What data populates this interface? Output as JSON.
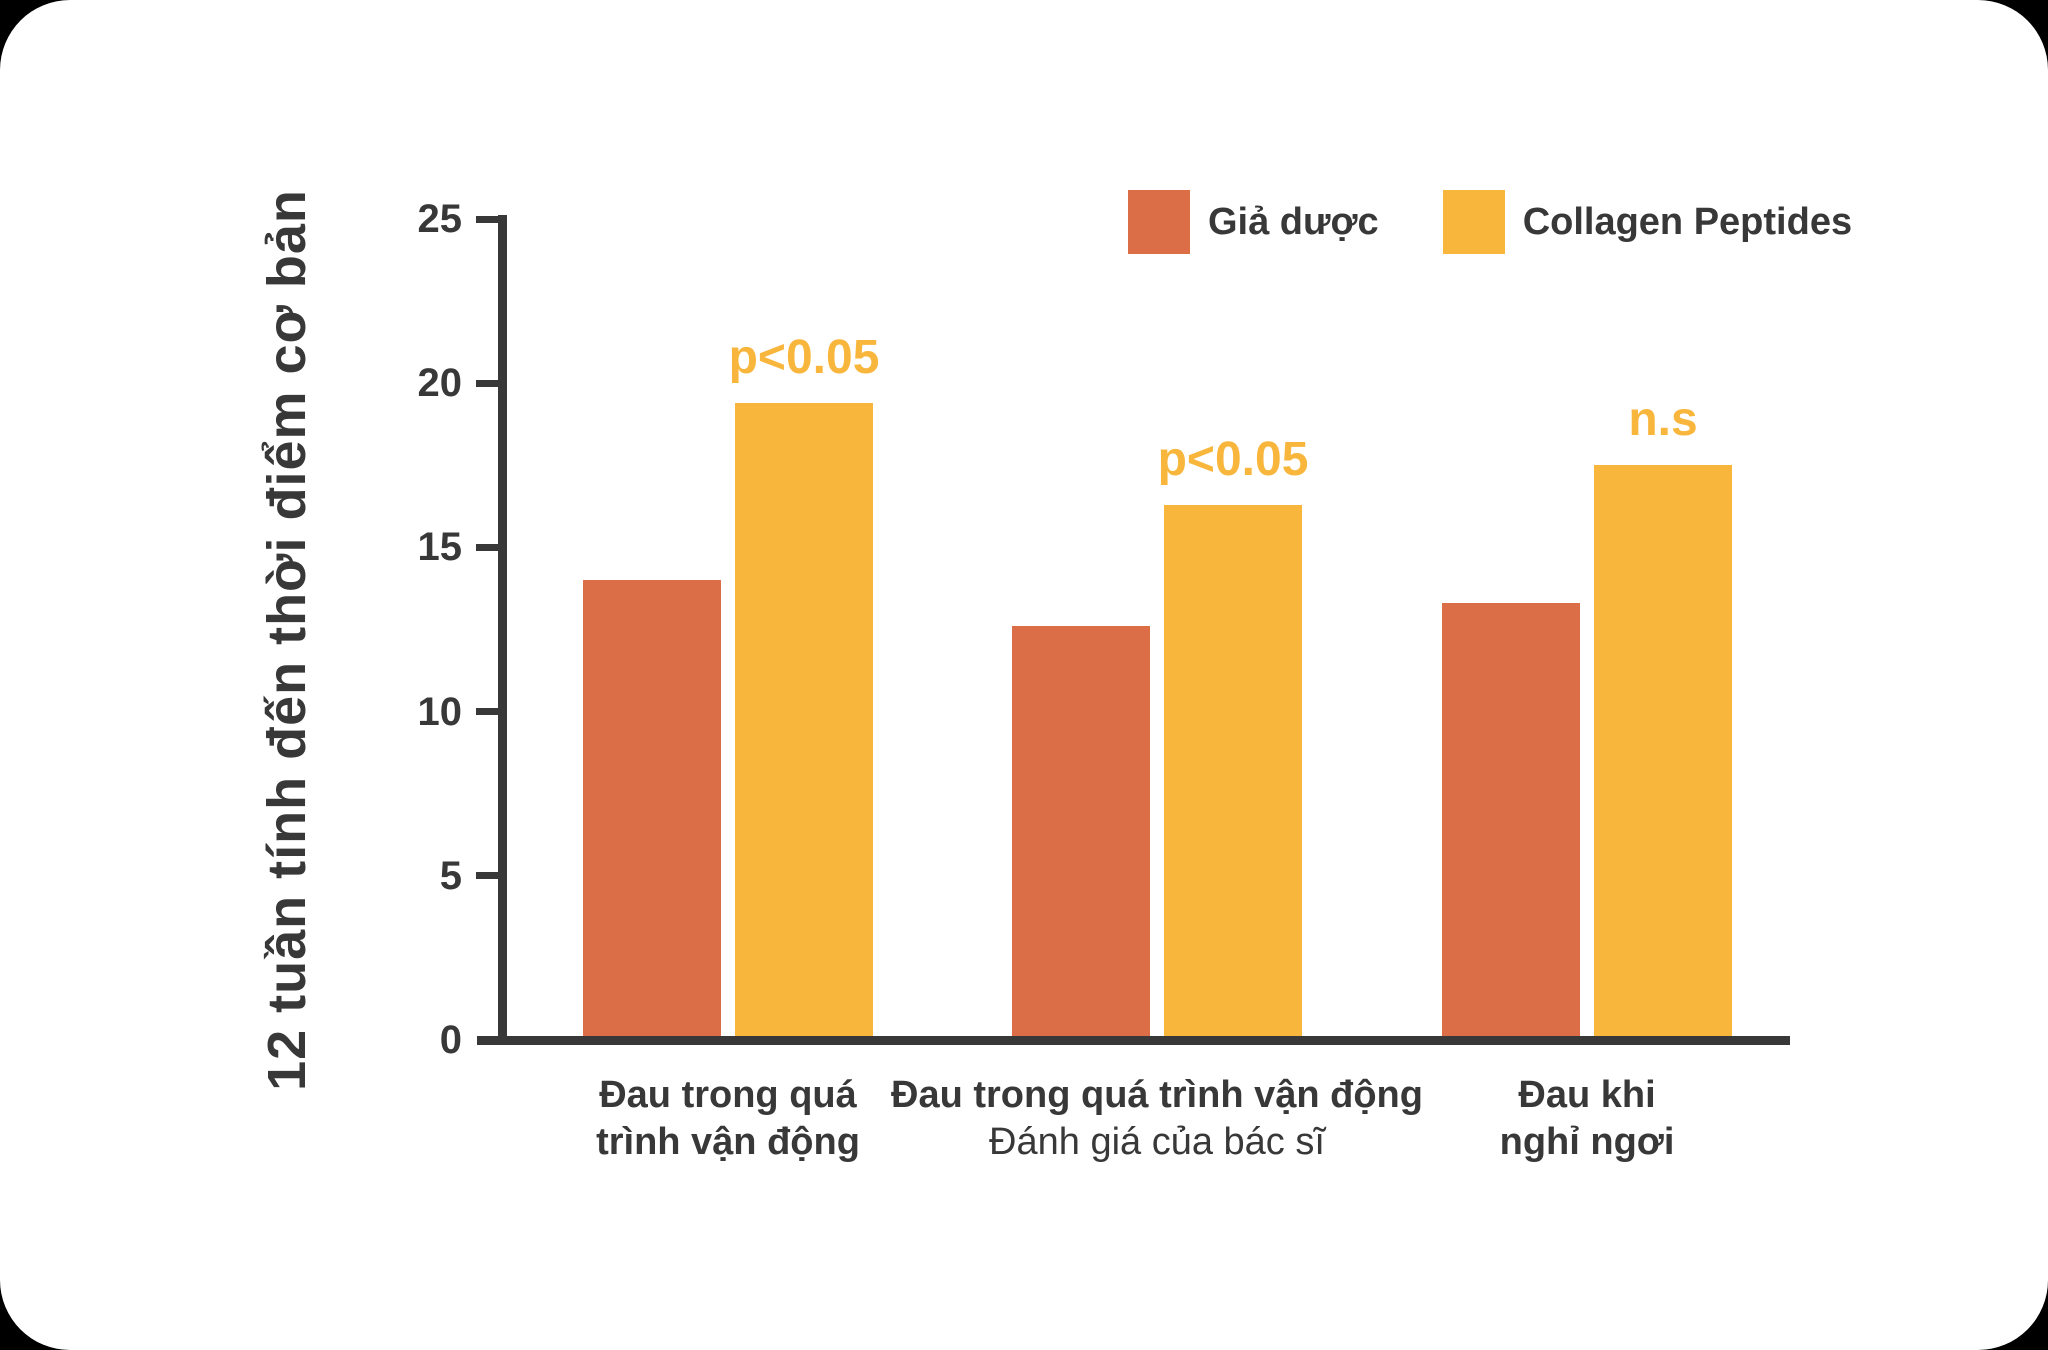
{
  "colors": {
    "outer_background": "#000000",
    "card_background": "#FFFFFF",
    "axis": "#383838",
    "text": "#383838",
    "placebo": "#DB6D47",
    "collagen": "#F9B63C",
    "annotation": "#F9B63C"
  },
  "legend": {
    "placebo_label": "Giả dược",
    "collagen_label": "Collagen Peptides"
  },
  "chart_data": {
    "type": "bar",
    "title": "",
    "xlabel": "",
    "ylabel": "12 tuần tính đến thời điểm cơ bản",
    "ylim": [
      0,
      25
    ],
    "yticks": [
      0,
      5,
      10,
      15,
      20,
      25
    ],
    "grid": false,
    "legend_position": "top-right",
    "categories": [
      {
        "lines": [
          {
            "text": "Đau trong quá",
            "bold": true
          },
          {
            "text": "trình vận động",
            "bold": true
          }
        ]
      },
      {
        "lines": [
          {
            "text": "Đau trong quá trình vận động",
            "bold": true
          },
          {
            "text": "Đánh giá của bác sĩ",
            "bold": false
          }
        ]
      },
      {
        "lines": [
          {
            "text": "Đau khi",
            "bold": true
          },
          {
            "text": "nghỉ ngơi",
            "bold": true
          }
        ]
      }
    ],
    "series": [
      {
        "name": "Giả dược",
        "color": "#DB6D47",
        "values": [
          14.0,
          12.6,
          13.3
        ]
      },
      {
        "name": "Collagen Peptides",
        "color": "#F9B63C",
        "values": [
          19.4,
          16.3,
          17.5
        ]
      }
    ],
    "annotations": [
      {
        "text": "p<0.05",
        "group": 0,
        "color": "#F9B63C"
      },
      {
        "text": "p<0.05",
        "group": 1,
        "color": "#F9B63C"
      },
      {
        "text": "n.s",
        "group": 2,
        "color": "#F9B63C"
      }
    ]
  }
}
